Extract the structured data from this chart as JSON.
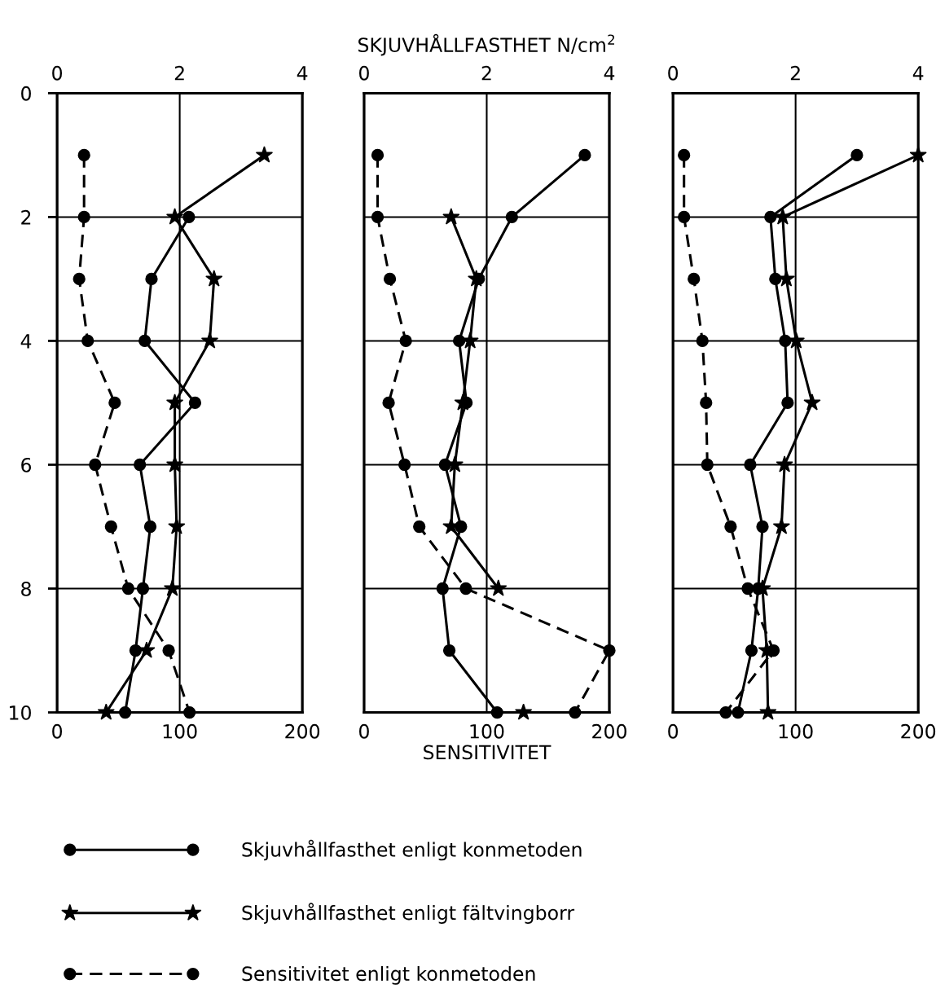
{
  "chart_data": [
    {
      "type": "line",
      "orientation": "horizontal",
      "x": [
        1,
        2,
        3,
        4,
        5,
        6,
        7,
        8,
        9,
        10
      ],
      "ylim": [
        10,
        0
      ],
      "yticks": [
        0,
        2,
        4,
        6,
        8,
        10
      ],
      "xlim": [
        0,
        200
      ],
      "xticks": [
        0,
        100,
        200
      ],
      "x2lim": [
        0,
        4
      ],
      "x2ticks": [
        0,
        2,
        4
      ],
      "grid": true,
      "legend": "bottom",
      "series": [
        {
          "name": "Skjuvhållfasthet enligt konmetoden",
          "color": "#000000",
          "axis": "x2",
          "marker": "circle",
          "line_style": "solid",
          "values": [
            null,
            2.15,
            1.54,
            1.43,
            2.25,
            1.35,
            1.52,
            1.4,
            1.28,
            1.11
          ]
        },
        {
          "name": "Skjuvhållfasthet enligt fältvingborr",
          "color": "#000000",
          "axis": "x2",
          "marker": "star",
          "line_style": "solid",
          "values": [
            3.38,
            1.92,
            2.56,
            2.49,
            1.92,
            1.92,
            1.95,
            1.88,
            1.46,
            0.8
          ]
        },
        {
          "name": "Sensitivitet enligt konmetoden",
          "color": "#000000",
          "marker": "circle",
          "line_style": "dashed",
          "values": [
            22,
            22,
            18,
            25,
            47,
            31,
            44,
            58,
            91,
            108
          ]
        }
      ]
    },
    {
      "type": "line",
      "orientation": "horizontal",
      "x": [
        1,
        2,
        3,
        4,
        5,
        6,
        7,
        8,
        9,
        10
      ],
      "ylim": [
        10,
        0
      ],
      "yticks": [
        0,
        2,
        4,
        6,
        8,
        10
      ],
      "xlim": [
        0,
        200
      ],
      "xticks": [
        0,
        100,
        200
      ],
      "x2lim": [
        0,
        4
      ],
      "x2ticks": [
        0,
        2,
        4
      ],
      "grid": true,
      "tick_labels": "x",
      "xlabel": "SENSITIVITET",
      "x2label": "SKJUVHÅLLFASTHET N/cm$^{2}$",
      "series": [
        {
          "color": "#000000",
          "axis": "x2",
          "marker": "circle",
          "line_style": "solid",
          "values": [
            3.6,
            2.41,
            1.87,
            1.55,
            1.67,
            1.32,
            1.58,
            1.28,
            1.39,
            2.17
          ]
        },
        {
          "color": "#000000",
          "axis": "x2",
          "marker": "star",
          "line_style": "solid",
          "values": [
            null,
            1.42,
            1.83,
            1.73,
            1.61,
            1.48,
            1.42,
            2.19,
            null,
            2.6
          ]
        },
        {
          "color": "#000000",
          "marker": "circle",
          "line_style": "dashed",
          "values": [
            11,
            11,
            21,
            34,
            20,
            33,
            45,
            83,
            200,
            172
          ]
        }
      ]
    },
    {
      "type": "line",
      "orientation": "horizontal",
      "x": [
        1,
        2,
        3,
        4,
        5,
        6,
        7,
        8,
        9,
        10
      ],
      "ylim": [
        10,
        0
      ],
      "yticks": [
        0,
        2,
        4,
        6,
        8,
        10
      ],
      "xlim": [
        0,
        200
      ],
      "xticks": [
        0,
        100,
        200
      ],
      "x2lim": [
        0,
        4
      ],
      "x2ticks": [
        0,
        2,
        4
      ],
      "grid": true,
      "tick_labels": "x",
      "series": [
        {
          "color": "#000000",
          "axis": "x2",
          "marker": "circle",
          "line_style": "solid",
          "values": [
            3.0,
            1.59,
            1.67,
            1.83,
            1.87,
            1.26,
            1.46,
            1.39,
            1.28,
            1.06
          ]
        },
        {
          "color": "#000000",
          "axis": "x2",
          "marker": "star",
          "line_style": "solid",
          "values": [
            4.0,
            1.79,
            1.85,
            2.01,
            2.27,
            1.82,
            1.77,
            1.46,
            1.53,
            1.55
          ]
        },
        {
          "color": "#000000",
          "marker": "circle",
          "line_style": "dashed",
          "values": [
            9,
            9,
            17,
            24,
            27,
            28,
            47,
            61,
            82,
            43
          ]
        }
      ]
    }
  ]
}
